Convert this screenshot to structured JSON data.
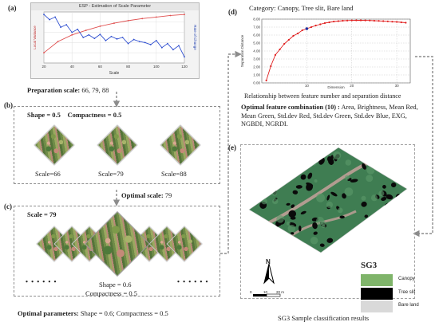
{
  "panel_a": {
    "letter": "(a)",
    "window_title": "ESP - Estimation of Scale Parameter",
    "x_label": "Scale",
    "y_left_label": "Local Variance",
    "y_right_label": "Rate of Change",
    "prep_label": "Preparation scale:",
    "prep_values": "66, 79, 88"
  },
  "panel_b": {
    "letter": "(b)",
    "shape_label": "Shape = 0.5",
    "compact_label": "Compactness = 0.5",
    "scale_labels": [
      "Scale=66",
      "Scale=79",
      "Scale=88"
    ],
    "optimal_label": "Optimal scale:",
    "optimal_value": "79"
  },
  "panel_c": {
    "letter": "(c)",
    "scale_label": "Scale = 79",
    "dots_left": "• • • • • •",
    "dots_right": "• • • • • •",
    "shape_label": "Shape = 0.6",
    "compact_label": "Compactness = 0.5",
    "optimal_params_label": "Optimal parameters:",
    "optimal_params_value": "Shape = 0.6; Compactness = 0.5"
  },
  "panel_d": {
    "letter": "(d)",
    "category": "Category: Canopy, Tree slit, Bare land",
    "caption": "Relationship between feature number and separation distance",
    "feature_title": "Optimal feature combination (10) :",
    "feature_list": "Area, Brightness, Mean Red, Mean Green, Std.dev Red, Std.dev Green, Std.dev Blue, EXG, NGBDI, NGRDI."
  },
  "panel_e": {
    "letter": "(e)",
    "north": "N",
    "scale_ticks": [
      "0",
      "10",
      "20 m"
    ],
    "legend_title": "SG3",
    "legend_items": [
      {
        "label": "Canopy",
        "color": "#7fb46a"
      },
      {
        "label": "Tree slit",
        "color": "#000000"
      },
      {
        "label": "Bare land",
        "color": "#d9d9d9"
      }
    ],
    "caption": "SG3 Sample classification results"
  },
  "chart_data": [
    {
      "type": "line",
      "title": "ESP - Estimation of Scale Parameter",
      "xlabel": "Scale",
      "ylabel": "Local Variance",
      "y2label": "Rate of Change",
      "x_ticks": [
        "20",
        "40",
        "60",
        "80",
        "100",
        "120"
      ],
      "xlim": [
        20,
        120
      ],
      "series": [
        {
          "name": "Local Variance",
          "color": "#e05050",
          "x": [
            20,
            30,
            40,
            50,
            60,
            70,
            80,
            90,
            100,
            110,
            120
          ],
          "values": [
            0.2,
            0.42,
            0.55,
            0.64,
            0.72,
            0.78,
            0.83,
            0.87,
            0.9,
            0.93,
            0.95
          ]
        },
        {
          "name": "Rate of Change",
          "color": "#3050d0",
          "x": [
            20,
            24,
            28,
            32,
            36,
            40,
            44,
            48,
            52,
            56,
            60,
            64,
            68,
            72,
            76,
            80,
            84,
            88,
            92,
            96,
            100,
            104,
            108,
            112,
            116,
            120
          ],
          "values": [
            0.95,
            0.85,
            0.9,
            0.7,
            0.75,
            0.6,
            0.66,
            0.5,
            0.55,
            0.48,
            0.56,
            0.44,
            0.52,
            0.47,
            0.5,
            0.38,
            0.46,
            0.42,
            0.4,
            0.36,
            0.44,
            0.3,
            0.38,
            0.26,
            0.34,
            0.12
          ]
        }
      ],
      "grid": true
    },
    {
      "type": "line",
      "xlabel": "Dimension",
      "ylabel": "Separation Distance",
      "x_ticks": [
        "10",
        "20",
        "30"
      ],
      "y_ticks": [
        "0.00",
        "1.00",
        "2.00",
        "3.00",
        "4.00",
        "5.00",
        "6.00",
        "7.00",
        "8.00"
      ],
      "xlim": [
        0,
        33
      ],
      "ylim": [
        0,
        8
      ],
      "series": [
        {
          "color": "#e02020",
          "x": [
            1,
            2,
            3,
            4,
            5,
            6,
            7,
            8,
            9,
            10,
            11,
            12,
            13,
            14,
            15,
            16,
            17,
            18,
            19,
            20,
            21,
            22,
            23,
            24,
            25,
            26,
            27,
            28,
            29,
            30,
            31,
            32
          ],
          "values": [
            0.3,
            2.1,
            3.5,
            4.2,
            4.9,
            5.4,
            5.9,
            6.2,
            6.6,
            6.8,
            7.0,
            7.2,
            7.35,
            7.5,
            7.6,
            7.7,
            7.75,
            7.8,
            7.82,
            7.84,
            7.85,
            7.85,
            7.84,
            7.83,
            7.8,
            7.78,
            7.75,
            7.72,
            7.68,
            7.65,
            7.6,
            7.55
          ]
        }
      ],
      "grid": true
    }
  ]
}
